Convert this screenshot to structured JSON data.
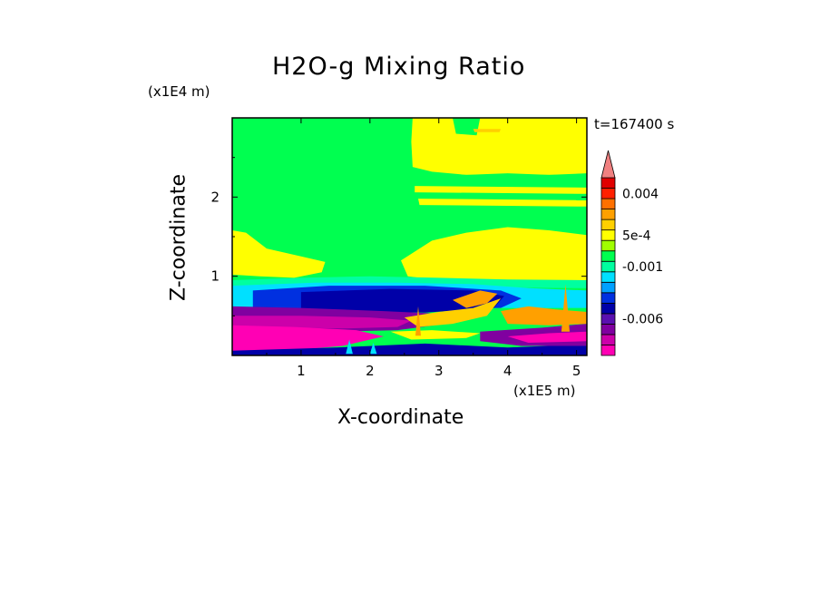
{
  "chart_data": {
    "type": "heatmap",
    "title": "H2O-g Mixing Ratio",
    "xlabel": "X-coordinate",
    "ylabel": "Z-coordinate",
    "x_multiplier": "(x1E5 m)",
    "y_multiplier": "(x1E4 m)",
    "time_label": "t=167400 s",
    "xlim": [
      0,
      5.15
    ],
    "ylim": [
      0,
      3.0
    ],
    "x_ticks": [
      "1",
      "2",
      "3",
      "4",
      "5"
    ],
    "y_ticks": [
      "1",
      "2"
    ],
    "colorbar": {
      "labels": [
        "0.004",
        "5e-4",
        "-0.001",
        "-0.006"
      ],
      "levels": [
        -0.009,
        -0.008,
        -0.007,
        -0.006,
        -0.005,
        -0.004,
        -0.003,
        -0.002,
        -0.001,
        -0.0005,
        0.0,
        0.0005,
        0.001,
        0.002,
        0.003,
        0.004,
        0.005,
        0.006
      ],
      "colors": [
        "#ff00b4",
        "#cc00aa",
        "#8000a0",
        "#5a10b0",
        "#0000a8",
        "#0030e0",
        "#00a0ff",
        "#00e0ff",
        "#00ffa0",
        "#00ff50",
        "#a0ff00",
        "#ffff00",
        "#ffd000",
        "#ffa000",
        "#ff7000",
        "#ff2000",
        "#e00000",
        "#f08080"
      ]
    },
    "regions": [
      {
        "name": "background",
        "x": [
          0,
          5.15
        ],
        "z": [
          0,
          3.0
        ],
        "color": "#00ff50"
      },
      {
        "name": "upper-yellow-band",
        "x": [
          2.6,
          5.15
        ],
        "z": [
          2.3,
          3.0
        ],
        "color": "#ffff00"
      },
      {
        "name": "mid-yellow-left",
        "x": [
          0,
          1.35
        ],
        "z": [
          1.0,
          1.5
        ],
        "color": "#ffff00"
      },
      {
        "name": "mid-yellow-right",
        "x": [
          2.4,
          5.15
        ],
        "z": [
          0.9,
          1.6
        ],
        "color": "#ffff00"
      },
      {
        "name": "cyan-layer",
        "x": [
          0,
          5.15
        ],
        "z": [
          0.65,
          0.9
        ],
        "color": "#00e0ff"
      },
      {
        "name": "blue-layer",
        "x": [
          1.0,
          4.2
        ],
        "z": [
          0.55,
          0.85
        ],
        "color": "#0000a8"
      },
      {
        "name": "purple-layer",
        "x": [
          0,
          3.2
        ],
        "z": [
          0.3,
          0.6
        ],
        "color": "#8000a0"
      },
      {
        "name": "magenta-layer",
        "x": [
          0,
          2.2
        ],
        "z": [
          0.05,
          0.35
        ],
        "color": "#ff00b4"
      },
      {
        "name": "orange-filaments",
        "x": [
          2.6,
          5.15
        ],
        "z": [
          0.2,
          0.8
        ],
        "color": "#ffa000"
      }
    ]
  }
}
